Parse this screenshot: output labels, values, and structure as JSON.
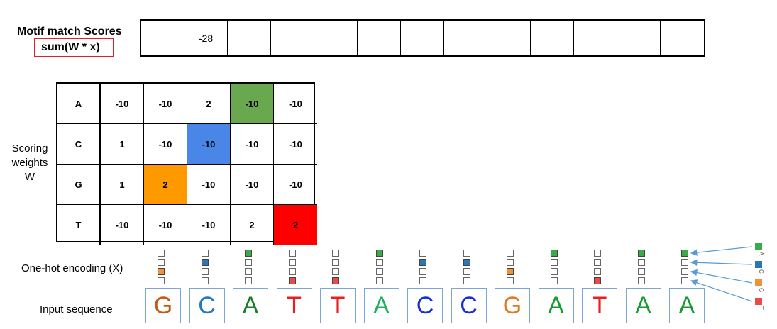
{
  "title": "Motif match Scores",
  "formula": "sum(W * x)",
  "scores": [
    "",
    "-28",
    "",
    "",
    "",
    "",
    "",
    "",
    "",
    "",
    "",
    "",
    ""
  ],
  "weights_label": [
    "Scoring",
    "weights",
    "W"
  ],
  "matrix": {
    "row_labels": [
      "A",
      "C",
      "G",
      "T"
    ],
    "rows": [
      [
        "-10",
        "-10",
        "2",
        "-10",
        "-10"
      ],
      [
        "1",
        "-10",
        "-10",
        "-10",
        "-10"
      ],
      [
        "1",
        "2",
        "-10",
        "-10",
        "-10"
      ],
      [
        "-10",
        "-10",
        "-10",
        "2",
        "2"
      ]
    ],
    "highlights": [
      {
        "row": 0,
        "col": 3,
        "color": "#6aa84f"
      },
      {
        "row": 1,
        "col": 2,
        "color": "#4a86e8"
      },
      {
        "row": 2,
        "col": 1,
        "color": "#ff9900"
      },
      {
        "row": 3,
        "col": 4,
        "color": "#ff0000"
      }
    ]
  },
  "onehot_label": "One-hot encoding (X)",
  "input_label": "Input sequence",
  "sequence": [
    "G",
    "C",
    "A",
    "T",
    "T",
    "A",
    "C",
    "C",
    "G",
    "A",
    "T",
    "A",
    "A"
  ],
  "base_colors": {
    "G": "#c55a11",
    "C": "#1a6ec2",
    "A": "#1a8a2a",
    "T": "#e02020"
  },
  "sequence_letter_colors": [
    "#c55a11",
    "#1f78c8",
    "#137f2a",
    "#e52020",
    "#e52020",
    "#22b060",
    "#1530d8",
    "#1530d8",
    "#e07a20",
    "#149a30",
    "#e52020",
    "#149a30",
    "#149a30"
  ],
  "onehot_colors": {
    "A": "#3bab4a",
    "C": "#2e75b6",
    "G": "#f0923a",
    "T": "#e94a4a"
  },
  "legend": [
    "A",
    "C",
    "G",
    "T"
  ]
}
